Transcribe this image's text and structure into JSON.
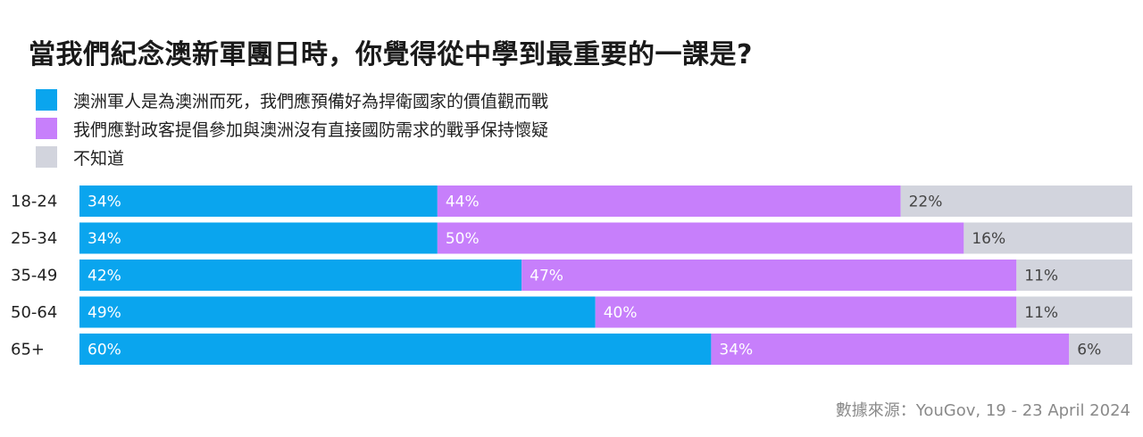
{
  "title": "當我們紀念澳新軍團日時，你覺得從中學到最重要的一課是?",
  "source": "數據來源：YouGov, 19 - 23 April 2024",
  "colors": {
    "s1": "#0aa5ee",
    "s2": "#c77ffb",
    "s3": "#d2d4dd",
    "text_on_bar": "#ffffff",
    "text_on_grey": "#444444"
  },
  "chart_data": {
    "type": "bar",
    "orientation": "horizontal",
    "stacked": true,
    "normalized": true,
    "title": "當我們紀念澳新軍團日時，你覺得從中學到最重要的一課是?",
    "categories": [
      "18-24",
      "25-34",
      "35-49",
      "50-64",
      "65+"
    ],
    "series": [
      {
        "name": "澳洲軍人是為澳洲而死，我們應預備好為捍衛國家的價值觀而戰",
        "values": [
          34,
          34,
          42,
          49,
          60
        ],
        "color": "#0aa5ee"
      },
      {
        "name": "我們應對政客提倡參加與澳洲沒有直接國防需求的戰爭保持懷疑",
        "values": [
          44,
          50,
          47,
          40,
          34
        ],
        "color": "#c77ffb"
      },
      {
        "name": "不知道",
        "values": [
          22,
          16,
          11,
          11,
          6
        ],
        "color": "#d2d4dd"
      }
    ],
    "value_suffix": "%",
    "legend_position": "top-left",
    "grid": false
  }
}
